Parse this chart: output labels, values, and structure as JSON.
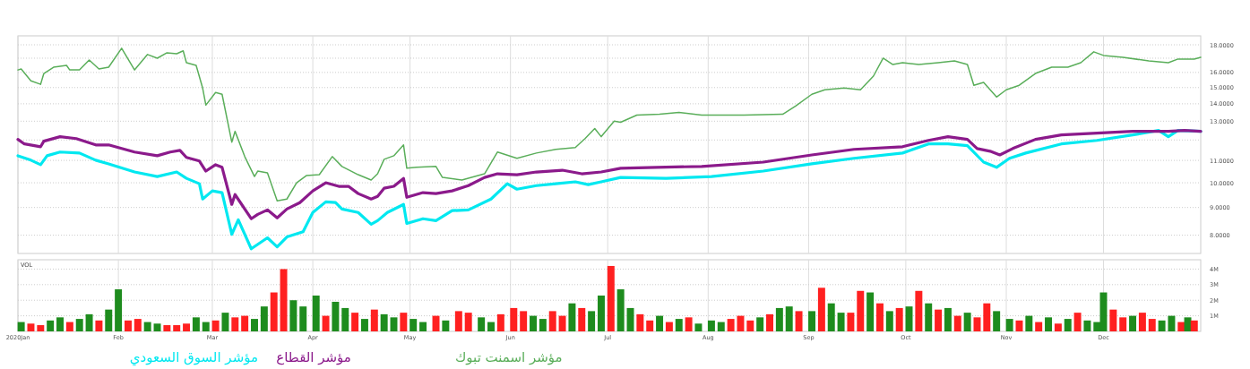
{
  "chart_data": [
    {
      "type": "line",
      "log": true,
      "grid": true,
      "legend": "bottom",
      "tick_labels": "y",
      "xlim": [
        "2020-01-01",
        "2020-12-31"
      ],
      "ylim": [
        7.4,
        18.7
      ],
      "xticks": [
        {
          "value": "2020-01-01",
          "label": null
        },
        {
          "value": "2020-02-01",
          "label": null
        },
        {
          "value": "2020-03-01",
          "label": null
        },
        {
          "value": "2020-04-01",
          "label": null
        },
        {
          "value": "2020-05-01",
          "label": null
        },
        {
          "value": "2020-06-01",
          "label": null
        },
        {
          "value": "2020-07-01",
          "label": null
        },
        {
          "value": "2020-08-01",
          "label": null
        },
        {
          "value": "2020-09-01",
          "label": null
        },
        {
          "value": "2020-10-01",
          "label": null
        },
        {
          "value": "2020-11-01",
          "label": null
        },
        {
          "value": "2020-12-01",
          "label": null
        }
      ],
      "yticks": [
        {
          "value": 8,
          "label": "8.0000"
        },
        {
          "value": 9,
          "label": "9.0000"
        },
        {
          "value": 10,
          "label": "10.0000"
        },
        {
          "value": 11,
          "label": "11.0000"
        },
        {
          "value": 12,
          "label": null
        },
        {
          "value": 13,
          "label": "13.0000"
        },
        {
          "value": 14,
          "label": "14.0000"
        },
        {
          "value": 15,
          "label": "15.0000"
        },
        {
          "value": 16,
          "label": "16.0000"
        },
        {
          "value": 17,
          "label": null
        },
        {
          "value": 18,
          "label": "18.0000"
        }
      ],
      "series": [
        {
          "name": "مؤشر اسمنت تبوك",
          "color": "#5aae5a",
          "x": [
            "2020-01-01",
            "2020-01-02",
            "2020-01-05",
            "2020-01-08",
            "2020-01-09",
            "2020-01-12",
            "2020-01-16",
            "2020-01-17",
            "2020-01-20",
            "2020-01-23",
            "2020-01-26",
            "2020-01-29",
            "2020-02-02",
            "2020-02-06",
            "2020-02-10",
            "2020-02-13",
            "2020-02-16",
            "2020-02-19",
            "2020-02-21",
            "2020-02-22",
            "2020-02-25",
            "2020-02-27",
            "2020-02-28",
            "2020-03-02",
            "2020-03-04",
            "2020-03-07",
            "2020-03-08",
            "2020-03-11",
            "2020-03-14",
            "2020-03-15",
            "2020-03-18",
            "2020-03-21",
            "2020-03-24",
            "2020-03-27",
            "2020-03-30",
            "2020-04-03",
            "2020-04-07",
            "2020-04-10",
            "2020-04-15",
            "2020-04-19",
            "2020-04-21",
            "2020-04-23",
            "2020-04-26",
            "2020-04-29",
            "2020-04-30",
            "2020-05-03",
            "2020-05-09",
            "2020-05-11",
            "2020-05-17",
            "2020-05-24",
            "2020-05-28",
            "2020-06-03",
            "2020-06-09",
            "2020-06-15",
            "2020-06-21",
            "2020-06-24",
            "2020-06-27",
            "2020-06-29",
            "2020-07-03",
            "2020-07-05",
            "2020-07-10",
            "2020-07-17",
            "2020-07-23",
            "2020-07-30",
            "2020-08-12",
            "2020-08-24",
            "2020-08-28",
            "2020-09-02",
            "2020-09-06",
            "2020-09-12",
            "2020-09-17",
            "2020-09-21",
            "2020-09-24",
            "2020-09-27",
            "2020-09-30",
            "2020-10-05",
            "2020-10-11",
            "2020-10-16",
            "2020-10-20",
            "2020-10-22",
            "2020-10-25",
            "2020-10-29",
            "2020-11-01",
            "2020-11-05",
            "2020-11-10",
            "2020-11-15",
            "2020-11-20",
            "2020-11-24",
            "2020-11-28",
            "2020-12-01",
            "2020-12-07",
            "2020-12-15",
            "2020-12-21",
            "2020-12-24",
            "2020-12-29",
            "2020-12-31"
          ],
          "values": [
            16.17,
            16.24,
            15.44,
            15.21,
            15.93,
            16.36,
            16.49,
            16.17,
            16.17,
            16.87,
            16.24,
            16.36,
            17.74,
            16.17,
            17.27,
            17.0,
            17.4,
            17.33,
            17.54,
            16.68,
            16.49,
            14.97,
            13.92,
            14.69,
            14.58,
            11.89,
            12.45,
            11.18,
            10.27,
            10.51,
            10.43,
            9.26,
            9.33,
            10.0,
            10.31,
            10.35,
            11.18,
            10.72,
            10.35,
            10.12,
            10.39,
            11.05,
            11.22,
            11.75,
            10.64,
            10.68,
            10.72,
            10.23,
            10.12,
            10.39,
            11.4,
            11.1,
            11.35,
            11.53,
            11.62,
            12.07,
            12.6,
            12.17,
            13.0,
            12.94,
            13.34,
            13.39,
            13.5,
            13.34,
            13.34,
            13.39,
            13.87,
            14.58,
            14.86,
            14.97,
            14.86,
            15.75,
            17.0,
            16.55,
            16.68,
            16.55,
            16.68,
            16.8,
            16.55,
            15.15,
            15.33,
            14.41,
            14.86,
            15.15,
            15.93,
            16.36,
            16.36,
            16.68,
            17.47,
            17.2,
            17.07,
            16.8,
            16.68,
            16.94,
            16.94,
            17.07
          ]
        },
        {
          "name": "مؤشر القطاع",
          "color": "#8b1a8b",
          "x": [
            "2020-01-01",
            "2020-01-03",
            "2020-01-08",
            "2020-01-09",
            "2020-01-14",
            "2020-01-19",
            "2020-01-25",
            "2020-01-29",
            "2020-02-06",
            "2020-02-13",
            "2020-02-17",
            "2020-02-20",
            "2020-02-22",
            "2020-02-26",
            "2020-02-28",
            "2020-03-02",
            "2020-03-04",
            "2020-03-07",
            "2020-03-08",
            "2020-03-13",
            "2020-03-15",
            "2020-03-18",
            "2020-03-21",
            "2020-03-24",
            "2020-03-28",
            "2020-04-01",
            "2020-04-05",
            "2020-04-09",
            "2020-04-12",
            "2020-04-15",
            "2020-04-19",
            "2020-04-21",
            "2020-04-23",
            "2020-04-26",
            "2020-04-29",
            "2020-04-30",
            "2020-05-05",
            "2020-05-09",
            "2020-05-14",
            "2020-05-19",
            "2020-05-24",
            "2020-05-28",
            "2020-06-03",
            "2020-06-09",
            "2020-06-17",
            "2020-06-23",
            "2020-06-29",
            "2020-07-05",
            "2020-07-16",
            "2020-07-30",
            "2020-08-18",
            "2020-09-02",
            "2020-09-15",
            "2020-09-30",
            "2020-10-08",
            "2020-10-14",
            "2020-10-20",
            "2020-10-23",
            "2020-10-27",
            "2020-10-30",
            "2020-11-03",
            "2020-11-10",
            "2020-11-18",
            "2020-11-29",
            "2020-12-10",
            "2020-12-21",
            "2020-12-26",
            "2020-12-31"
          ],
          "values": [
            12.03,
            11.8,
            11.66,
            11.94,
            12.17,
            12.07,
            11.75,
            11.75,
            11.4,
            11.22,
            11.4,
            11.48,
            11.14,
            10.97,
            10.51,
            10.8,
            10.68,
            9.12,
            9.51,
            8.58,
            8.74,
            8.91,
            8.61,
            8.94,
            9.19,
            9.66,
            10.0,
            9.85,
            9.85,
            9.55,
            9.33,
            9.44,
            9.77,
            9.85,
            10.19,
            9.4,
            9.59,
            9.55,
            9.66,
            9.88,
            10.23,
            10.39,
            10.35,
            10.47,
            10.55,
            10.39,
            10.47,
            10.64,
            10.68,
            10.72,
            10.92,
            11.26,
            11.53,
            11.66,
            11.98,
            12.17,
            12.03,
            11.57,
            11.44,
            11.26,
            11.57,
            12.03,
            12.26,
            12.36,
            12.45,
            12.45,
            12.5,
            12.45
          ]
        },
        {
          "name": "مؤشر السوق السعودي",
          "color": "#00e8f0",
          "x": [
            "2020-01-01",
            "2020-01-05",
            "2020-01-08",
            "2020-01-10",
            "2020-01-14",
            "2020-01-20",
            "2020-01-25",
            "2020-01-29",
            "2020-02-06",
            "2020-02-13",
            "2020-02-19",
            "2020-02-22",
            "2020-02-26",
            "2020-02-27",
            "2020-03-01",
            "2020-03-04",
            "2020-03-07",
            "2020-03-09",
            "2020-03-13",
            "2020-03-18",
            "2020-03-21",
            "2020-03-24",
            "2020-03-29",
            "2020-04-01",
            "2020-04-05",
            "2020-04-08",
            "2020-04-10",
            "2020-04-15",
            "2020-04-19",
            "2020-04-21",
            "2020-04-24",
            "2020-04-29",
            "2020-04-30",
            "2020-05-05",
            "2020-05-09",
            "2020-05-14",
            "2020-05-19",
            "2020-05-26",
            "2020-05-31",
            "2020-06-03",
            "2020-06-09",
            "2020-06-15",
            "2020-06-21",
            "2020-06-25",
            "2020-06-29",
            "2020-07-05",
            "2020-07-19",
            "2020-08-02",
            "2020-08-18",
            "2020-09-02",
            "2020-09-15",
            "2020-09-30",
            "2020-10-08",
            "2020-10-14",
            "2020-10-20",
            "2020-10-25",
            "2020-10-29",
            "2020-11-02",
            "2020-11-07",
            "2020-11-18",
            "2020-11-29",
            "2020-12-10",
            "2020-12-18",
            "2020-12-21",
            "2020-12-24",
            "2020-12-31"
          ],
          "values": [
            11.22,
            11.01,
            10.8,
            11.22,
            11.4,
            11.35,
            11.01,
            10.84,
            10.47,
            10.27,
            10.47,
            10.19,
            9.96,
            9.33,
            9.66,
            9.59,
            8.03,
            8.54,
            7.55,
            7.91,
            7.61,
            7.94,
            8.12,
            8.81,
            9.22,
            9.19,
            8.94,
            8.81,
            8.38,
            8.51,
            8.81,
            9.12,
            8.41,
            8.58,
            8.51,
            8.88,
            8.91,
            9.33,
            9.96,
            9.73,
            9.88,
            9.96,
            10.04,
            9.92,
            10.04,
            10.23,
            10.19,
            10.27,
            10.51,
            10.84,
            11.1,
            11.35,
            11.8,
            11.8,
            11.71,
            10.92,
            10.68,
            11.1,
            11.35,
            11.8,
            11.98,
            12.26,
            12.5,
            12.17,
            12.5,
            12.45
          ]
        }
      ]
    },
    {
      "type": "bar",
      "title": "VOL",
      "grid": true,
      "xlim": [
        "2020-01-01",
        "2020-12-31"
      ],
      "ylim": [
        0,
        4.6
      ],
      "xticks": [
        {
          "value": "2020-01-01",
          "label": "2020Jan"
        },
        {
          "value": "2020-02-01",
          "label": "Feb"
        },
        {
          "value": "2020-03-01",
          "label": "Mar"
        },
        {
          "value": "2020-04-01",
          "label": "Apr"
        },
        {
          "value": "2020-05-01",
          "label": "May"
        },
        {
          "value": "2020-06-01",
          "label": "Jun"
        },
        {
          "value": "2020-07-01",
          "label": "Jul"
        },
        {
          "value": "2020-08-01",
          "label": "Aug"
        },
        {
          "value": "2020-09-01",
          "label": "Sep"
        },
        {
          "value": "2020-10-01",
          "label": "Oct"
        },
        {
          "value": "2020-11-01",
          "label": "Nov"
        },
        {
          "value": "2020-12-01",
          "label": "Dec"
        }
      ],
      "yticks": [
        {
          "value": 1,
          "label": "1M"
        },
        {
          "value": 2,
          "label": "2M"
        },
        {
          "value": 3,
          "label": "3M"
        },
        {
          "value": 4,
          "label": "4M"
        }
      ],
      "x": [
        "2020-01-02",
        "2020-01-05",
        "2020-01-08",
        "2020-01-11",
        "2020-01-14",
        "2020-01-17",
        "2020-01-20",
        "2020-01-23",
        "2020-01-26",
        "2020-01-29",
        "2020-02-01",
        "2020-02-04",
        "2020-02-07",
        "2020-02-10",
        "2020-02-13",
        "2020-02-16",
        "2020-02-19",
        "2020-02-22",
        "2020-02-25",
        "2020-02-28",
        "2020-03-02",
        "2020-03-05",
        "2020-03-08",
        "2020-03-11",
        "2020-03-14",
        "2020-03-17",
        "2020-03-20",
        "2020-03-23",
        "2020-03-26",
        "2020-03-29",
        "2020-04-02",
        "2020-04-05",
        "2020-04-08",
        "2020-04-11",
        "2020-04-14",
        "2020-04-17",
        "2020-04-20",
        "2020-04-23",
        "2020-04-26",
        "2020-04-29",
        "2020-05-02",
        "2020-05-05",
        "2020-05-09",
        "2020-05-12",
        "2020-05-16",
        "2020-05-19",
        "2020-05-23",
        "2020-05-26",
        "2020-05-29",
        "2020-06-02",
        "2020-06-05",
        "2020-06-08",
        "2020-06-11",
        "2020-06-14",
        "2020-06-17",
        "2020-06-20",
        "2020-06-23",
        "2020-06-26",
        "2020-06-29",
        "2020-07-02",
        "2020-07-05",
        "2020-07-08",
        "2020-07-11",
        "2020-07-14",
        "2020-07-17",
        "2020-07-20",
        "2020-07-23",
        "2020-07-26",
        "2020-07-29",
        "2020-08-02",
        "2020-08-05",
        "2020-08-08",
        "2020-08-11",
        "2020-08-14",
        "2020-08-17",
        "2020-08-20",
        "2020-08-23",
        "2020-08-26",
        "2020-08-29",
        "2020-09-02",
        "2020-09-05",
        "2020-09-08",
        "2020-09-11",
        "2020-09-14",
        "2020-09-17",
        "2020-09-20",
        "2020-09-23",
        "2020-09-26",
        "2020-09-29",
        "2020-10-02",
        "2020-10-05",
        "2020-10-08",
        "2020-10-11",
        "2020-10-14",
        "2020-10-17",
        "2020-10-20",
        "2020-10-23",
        "2020-10-26",
        "2020-10-29",
        "2020-11-02",
        "2020-11-05",
        "2020-11-08",
        "2020-11-11",
        "2020-11-14",
        "2020-11-17",
        "2020-11-20",
        "2020-11-23",
        "2020-11-26",
        "2020-11-29",
        "2020-12-01",
        "2020-12-04",
        "2020-12-07",
        "2020-12-10",
        "2020-12-13",
        "2020-12-16",
        "2020-12-19",
        "2020-12-22",
        "2020-12-25",
        "2020-12-27",
        "2020-12-29"
      ],
      "values": [
        0.6,
        0.5,
        0.4,
        0.7,
        0.9,
        0.6,
        0.8,
        1.1,
        0.7,
        1.4,
        2.7,
        0.7,
        0.8,
        0.6,
        0.5,
        0.4,
        0.4,
        0.5,
        0.9,
        0.6,
        0.7,
        1.2,
        0.9,
        1.0,
        0.8,
        1.6,
        2.5,
        4.0,
        2.0,
        1.6,
        2.3,
        1.0,
        1.9,
        1.5,
        1.2,
        0.8,
        1.4,
        1.1,
        0.9,
        1.2,
        0.8,
        0.6,
        1.0,
        0.7,
        1.3,
        1.2,
        0.9,
        0.6,
        1.1,
        1.5,
        1.3,
        1.0,
        0.8,
        1.3,
        1.0,
        1.8,
        1.5,
        1.3,
        2.3,
        4.2,
        2.7,
        1.5,
        1.1,
        0.7,
        1.0,
        0.6,
        0.8,
        0.9,
        0.5,
        0.7,
        0.6,
        0.8,
        1.0,
        0.7,
        0.9,
        1.1,
        1.5,
        1.6,
        1.3,
        1.3,
        2.8,
        1.8,
        1.2,
        1.2,
        2.6,
        2.5,
        1.8,
        1.3,
        1.5,
        1.6,
        2.6,
        1.8,
        1.4,
        1.5,
        1.0,
        1.2,
        0.9,
        1.8,
        1.3,
        0.8,
        0.7,
        1.0,
        0.6,
        0.9,
        0.5,
        0.8,
        1.2,
        0.7,
        0.6,
        2.5,
        1.4,
        0.9,
        1.0,
        1.2,
        0.8,
        0.7,
        1.0,
        0.6,
        0.9,
        0.7
      ],
      "colors": [
        "#1e8c1e",
        "#ff2020",
        "#ff2020",
        "#1e8c1e",
        "#1e8c1e",
        "#ff2020",
        "#1e8c1e",
        "#1e8c1e",
        "#ff2020",
        "#1e8c1e",
        "#1e8c1e",
        "#ff2020",
        "#ff2020",
        "#1e8c1e",
        "#1e8c1e",
        "#ff2020",
        "#ff2020",
        "#ff2020",
        "#1e8c1e",
        "#1e8c1e",
        "#ff2020",
        "#1e8c1e",
        "#ff2020",
        "#ff2020",
        "#1e8c1e",
        "#1e8c1e",
        "#ff2020",
        "#ff2020",
        "#1e8c1e",
        "#1e8c1e",
        "#1e8c1e",
        "#ff2020",
        "#1e8c1e",
        "#1e8c1e",
        "#ff2020",
        "#1e8c1e",
        "#ff2020",
        "#1e8c1e",
        "#1e8c1e",
        "#ff2020",
        "#1e8c1e",
        "#1e8c1e",
        "#ff2020",
        "#1e8c1e",
        "#ff2020",
        "#ff2020",
        "#1e8c1e",
        "#1e8c1e",
        "#ff2020",
        "#ff2020",
        "#ff2020",
        "#1e8c1e",
        "#1e8c1e",
        "#ff2020",
        "#ff2020",
        "#1e8c1e",
        "#ff2020",
        "#1e8c1e",
        "#1e8c1e",
        "#ff2020",
        "#1e8c1e",
        "#1e8c1e",
        "#ff2020",
        "#ff2020",
        "#1e8c1e",
        "#ff2020",
        "#1e8c1e",
        "#ff2020",
        "#1e8c1e",
        "#1e8c1e",
        "#1e8c1e",
        "#ff2020",
        "#ff2020",
        "#ff2020",
        "#1e8c1e",
        "#ff2020",
        "#1e8c1e",
        "#1e8c1e",
        "#ff2020",
        "#1e8c1e",
        "#ff2020",
        "#1e8c1e",
        "#1e8c1e",
        "#ff2020",
        "#ff2020",
        "#1e8c1e",
        "#ff2020",
        "#1e8c1e",
        "#ff2020",
        "#1e8c1e",
        "#ff2020",
        "#1e8c1e",
        "#ff2020",
        "#1e8c1e",
        "#ff2020",
        "#1e8c1e",
        "#ff2020",
        "#ff2020",
        "#1e8c1e",
        "#1e8c1e",
        "#ff2020",
        "#1e8c1e",
        "#ff2020",
        "#1e8c1e",
        "#ff2020",
        "#1e8c1e",
        "#ff2020",
        "#1e8c1e",
        "#1e8c1e",
        "#1e8c1e",
        "#ff2020",
        "#ff2020",
        "#1e8c1e",
        "#ff2020",
        "#ff2020",
        "#1e8c1e",
        "#1e8c1e",
        "#ff2020",
        "#1e8c1e",
        "#ff2020"
      ]
    }
  ]
}
